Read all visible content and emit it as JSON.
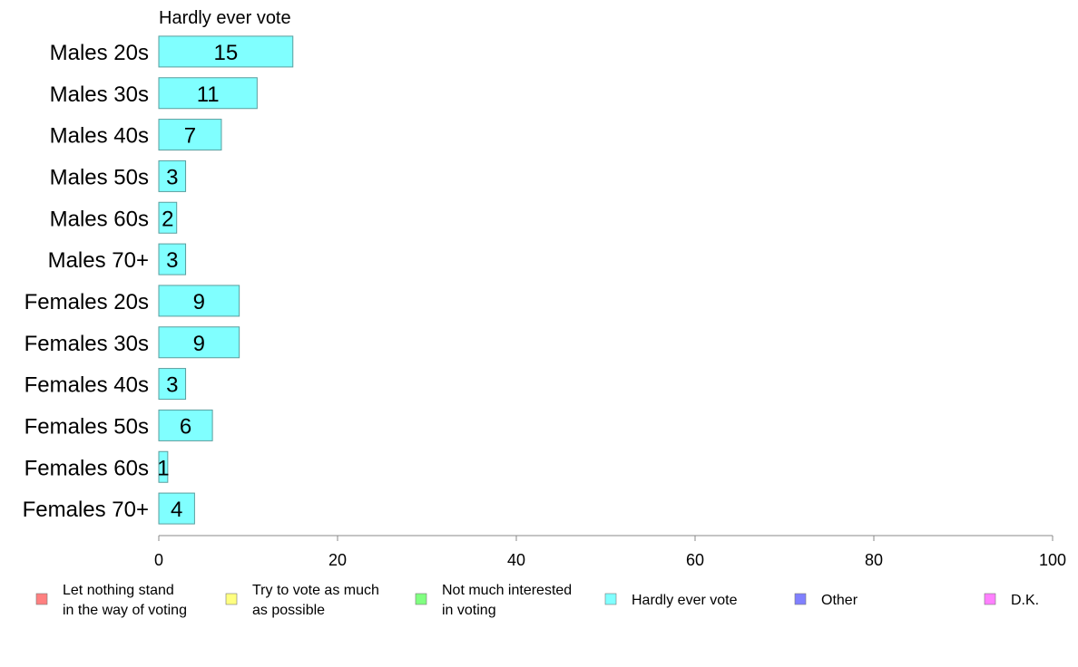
{
  "chart_data": {
    "type": "bar",
    "orientation": "horizontal",
    "title": "Hardly ever vote",
    "categories": [
      "Males 20s",
      "Males 30s",
      "Males 40s",
      "Males 50s",
      "Males 60s",
      "Males 70+",
      "Females 20s",
      "Females 30s",
      "Females 40s",
      "Females 50s",
      "Females 60s",
      "Females 70+"
    ],
    "values": [
      15,
      11,
      7,
      3,
      2,
      3,
      9,
      9,
      3,
      6,
      1,
      4
    ],
    "value_labels": [
      "15",
      "11",
      "7",
      "3",
      "2",
      "3",
      "9",
      "9",
      "3",
      "6",
      "1",
      "4"
    ],
    "bar_color": "#80ffff",
    "bar_edge_color": "#5a9e9e",
    "xlim": [
      0,
      100
    ],
    "x_ticks": [
      "0",
      "20",
      "40",
      "60",
      "80",
      "100"
    ],
    "grid": false,
    "legend_position": "bottom",
    "legend": [
      {
        "lines": [
          "Let nothing stand",
          "in the way of voting"
        ],
        "color": "#ff8080"
      },
      {
        "lines": [
          "Try to vote as much",
          "as possible"
        ],
        "color": "#ffff80"
      },
      {
        "lines": [
          "Not much interested",
          "in voting"
        ],
        "color": "#80ff80"
      },
      {
        "lines": [
          "Hardly ever vote"
        ],
        "color": "#80ffff"
      },
      {
        "lines": [
          "Other"
        ],
        "color": "#8080ff"
      },
      {
        "lines": [
          "D.K."
        ],
        "color": "#ff80ff"
      }
    ]
  }
}
